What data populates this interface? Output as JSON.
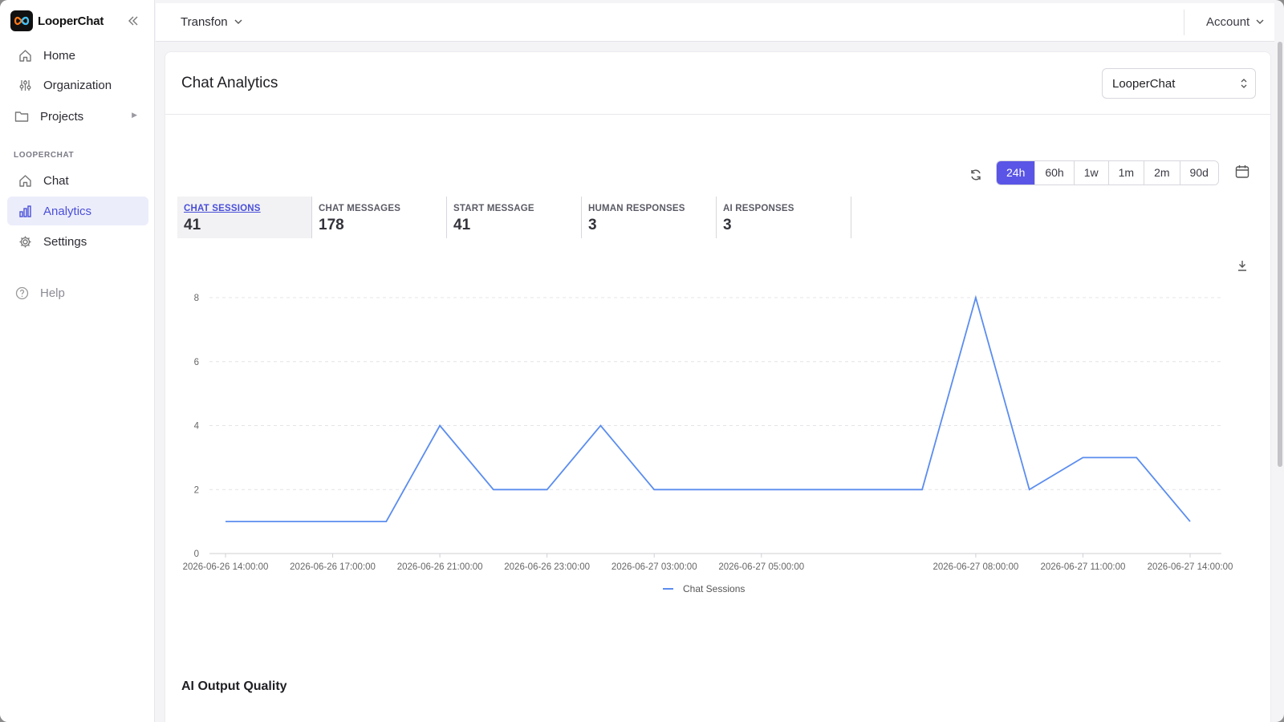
{
  "brand": {
    "name": "LooperChat",
    "logo_icon": "infinity-logo"
  },
  "sidebar": {
    "items": [
      {
        "label": "Home",
        "icon": "home-icon"
      },
      {
        "label": "Organization",
        "icon": "sliders-icon"
      },
      {
        "label": "Projects",
        "icon": "folder-icon"
      }
    ],
    "section_label": "LOOPERCHAT",
    "section_items": [
      {
        "label": "Chat",
        "icon": "home-icon"
      },
      {
        "label": "Analytics",
        "icon": "bar-chart-icon",
        "active": true
      },
      {
        "label": "Settings",
        "icon": "gear-icon"
      }
    ],
    "help_label": "Help"
  },
  "topbar": {
    "org": "Transfon",
    "account": "Account"
  },
  "main": {
    "title": "Chat Analytics",
    "project_select": "LooperChat",
    "ranges": [
      "24h",
      "60h",
      "1w",
      "1m",
      "2m",
      "90d"
    ],
    "active_range": "24h",
    "stats": [
      {
        "label": "CHAT SESSIONS",
        "value": "41"
      },
      {
        "label": "CHAT MESSAGES",
        "value": "178"
      },
      {
        "label": "START MESSAGE",
        "value": "41"
      },
      {
        "label": "HUMAN RESPONSES",
        "value": "3"
      },
      {
        "label": "AI RESPONSES",
        "value": "3"
      }
    ],
    "section_title": "AI Output Quality"
  },
  "colors": {
    "accent": "#5a55e6",
    "line": "#5b8def"
  },
  "chart_data": {
    "type": "line",
    "x_tick_labels": [
      "2026-06-26 14:00:00",
      "2026-06-26 17:00:00",
      "2026-06-26 21:00:00",
      "2026-06-26 23:00:00",
      "2026-06-27 03:00:00",
      "2026-06-27 05:00:00",
      "2026-06-27 08:00:00",
      "2026-06-27 11:00:00",
      "2026-06-27 14:00:00"
    ],
    "y_ticks": [
      0,
      2,
      4,
      6,
      8
    ],
    "ylim": [
      0,
      8
    ],
    "grid": true,
    "legend": "bottom-center",
    "series": [
      {
        "name": "Chat Sessions",
        "values": [
          1,
          1,
          1,
          1,
          4,
          2,
          2,
          4,
          2,
          2,
          2,
          2,
          2,
          2,
          8,
          2,
          3,
          3,
          1
        ]
      }
    ]
  }
}
